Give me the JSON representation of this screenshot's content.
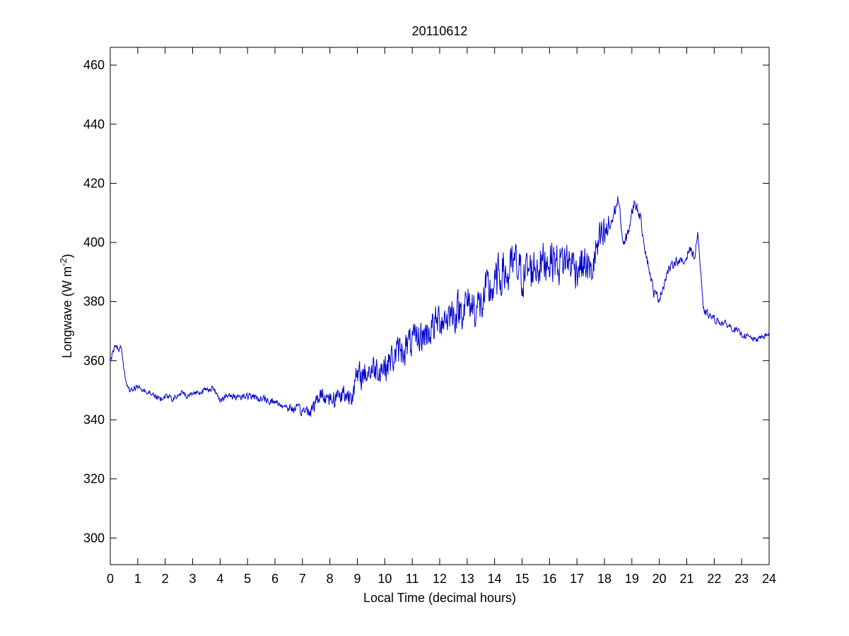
{
  "chart_data": {
    "type": "line",
    "title": "20110612",
    "xlabel": "Local Time (decimal hours)",
    "ylabel": {
      "prefix": "Longwave (W m",
      "superscript": "-2",
      "suffix": ")"
    },
    "xlim": [
      0,
      24
    ],
    "ylim": [
      291,
      466
    ],
    "xticks": [
      0,
      1,
      2,
      3,
      4,
      5,
      6,
      7,
      8,
      9,
      10,
      11,
      12,
      13,
      14,
      15,
      16,
      17,
      18,
      19,
      20,
      21,
      22,
      23,
      24
    ],
    "yticks": [
      300,
      320,
      340,
      360,
      380,
      400,
      420,
      440,
      460
    ],
    "grid": false,
    "box": true,
    "colors": {
      "line": "#0000cc",
      "axes": "#000000",
      "background": "#ffffff"
    },
    "series": [
      {
        "x": [
          0,
          0.1,
          0.2,
          0.3,
          0.4,
          0.5,
          0.6,
          0.7,
          1.0,
          1.5,
          1.8,
          2.0,
          2.3,
          2.6,
          2.8,
          3.0,
          3.5,
          3.7,
          4.0,
          4.3,
          4.6,
          5.0,
          5.5,
          6.0,
          6.5,
          7.0,
          7.3,
          7.7,
          8.0,
          8.5,
          8.7,
          9.0,
          9.5,
          10.0,
          10.5,
          11.0,
          11.5,
          12.0,
          12.5,
          13.0,
          13.5,
          13.7,
          14.0,
          14.3,
          14.5,
          14.7,
          15.0,
          15.5,
          16.0,
          16.3,
          16.6,
          17.0,
          17.3,
          17.5,
          17.7,
          18.0,
          18.3,
          18.5,
          18.7,
          18.9,
          19.1,
          19.3,
          19.5,
          19.8,
          20.0,
          20.3,
          20.6,
          20.9,
          21.1,
          21.3,
          21.4,
          21.6,
          22.0,
          22.5,
          23.0,
          23.5,
          24.0
        ],
        "values": [
          360,
          363,
          366,
          363,
          365,
          357,
          352,
          350,
          351,
          349,
          347,
          348,
          347,
          349,
          348,
          349,
          350,
          351,
          347,
          348,
          348,
          348,
          347,
          346,
          344,
          343,
          343,
          349,
          347,
          349,
          348,
          354,
          357,
          358,
          363,
          366,
          369,
          374,
          376,
          379,
          378,
          383,
          385,
          391,
          388,
          393,
          389,
          392,
          395,
          393,
          394,
          392,
          393,
          389,
          397,
          402,
          408,
          415,
          398,
          405,
          414,
          409,
          397,
          383,
          381,
          390,
          394,
          393,
          398,
          395,
          404,
          377,
          374,
          372,
          369,
          367,
          369
        ]
      }
    ],
    "noise_amplitude": {
      "x": [
        0,
        0.6,
        6.5,
        8.5,
        9.0,
        13.0,
        14.0,
        18.0,
        18.4,
        19.3,
        21.6,
        24.0
      ],
      "values": [
        0.7,
        0.6,
        0.9,
        2.6,
        3.2,
        4.6,
        5.3,
        4.6,
        1.6,
        1.2,
        0.9,
        0.6
      ]
    }
  }
}
